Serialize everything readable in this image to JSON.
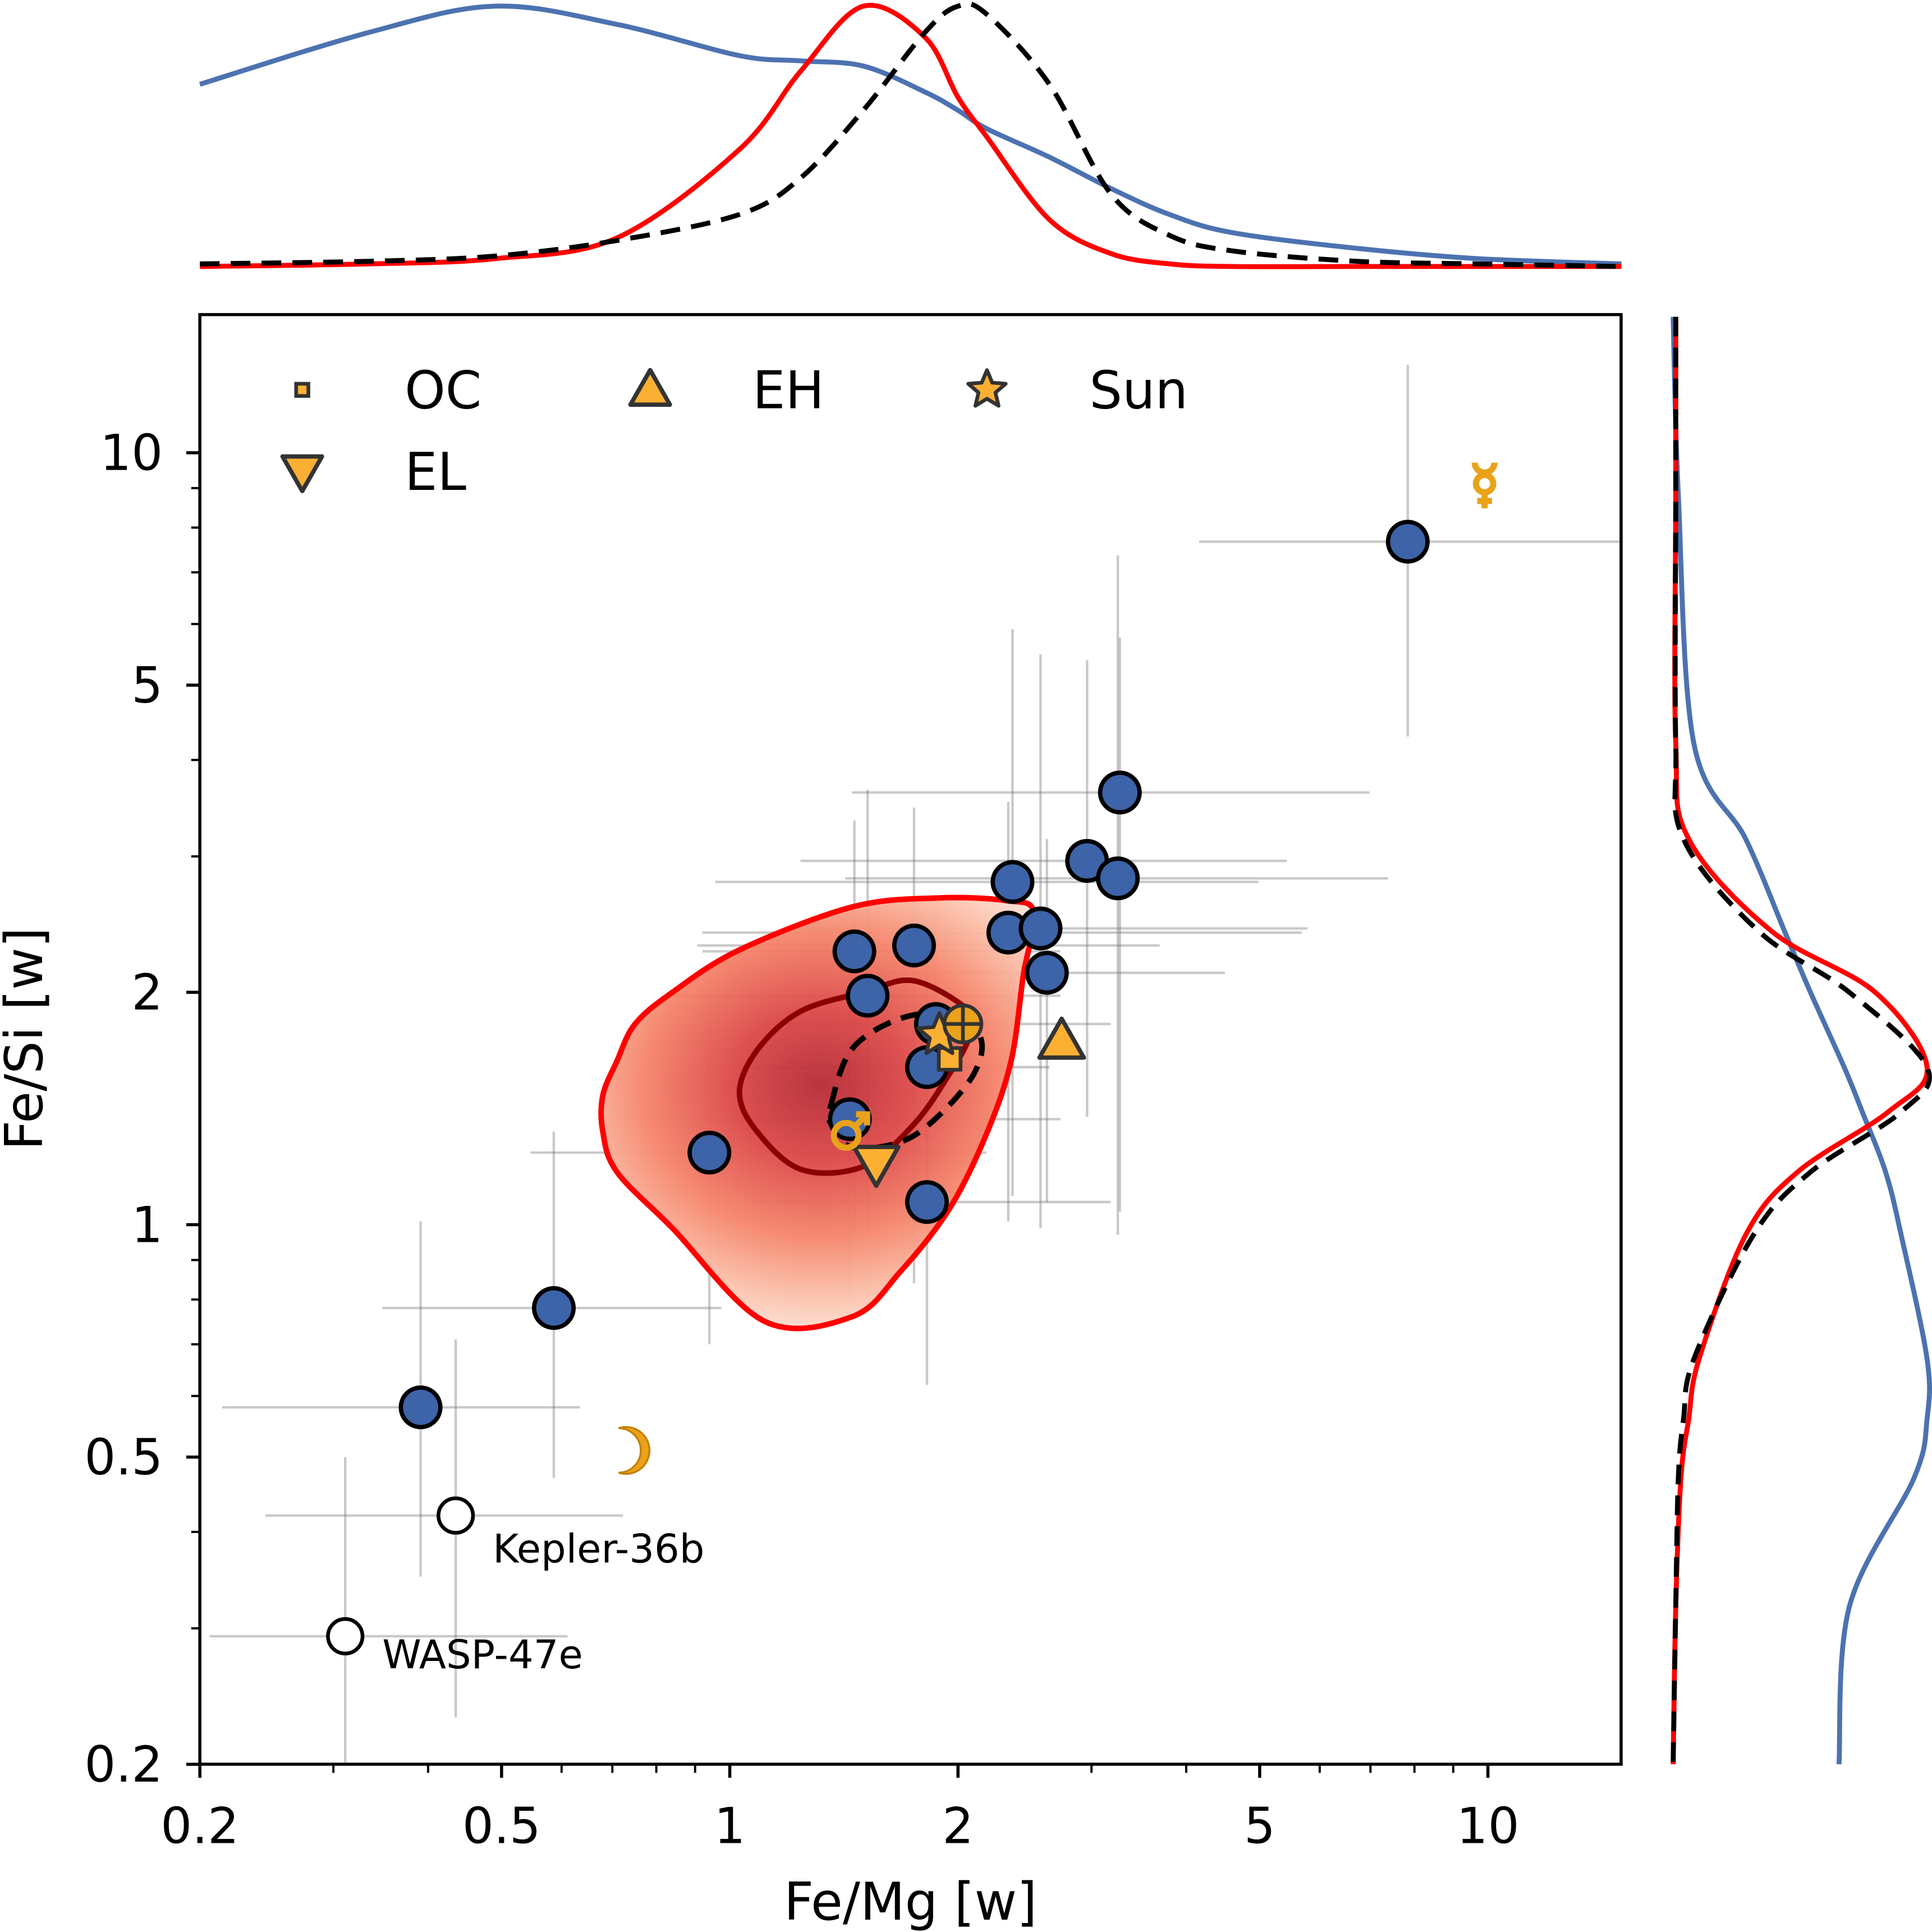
{
  "chart_data": {
    "type": "scatter",
    "xlabel": "Fe/Mg [w]",
    "ylabel": "Fe/Si [w]",
    "xscale": "log",
    "yscale": "log",
    "xlim": [
      0.2,
      15
    ],
    "ylim": [
      0.2,
      15
    ],
    "xticks": [
      0.2,
      0.5,
      1,
      2,
      5,
      10
    ],
    "xtick_labels": [
      "0.2",
      "0.5",
      "1",
      "2",
      "5",
      "10"
    ],
    "yticks": [
      0.2,
      0.5,
      1,
      2,
      5,
      10
    ],
    "ytick_labels": [
      "0.2",
      "0.5",
      "1",
      "2",
      "5",
      "10"
    ],
    "grid": false,
    "colors": {
      "planets": "#3d63a8",
      "meteorites": "#fbb034",
      "solar_bodies": "#f0a020",
      "outer_contour": "#ff0000",
      "inner_contour": "#8b0000",
      "dashed": "#000000",
      "errorbar": "#9a9a9a"
    },
    "points": [
      {
        "x": 7.84,
        "y": 7.67,
        "xerr": [
          4.16,
          15
        ],
        "yerr": [
          4.29,
          13.0
        ]
      },
      {
        "x": 3.27,
        "y": 3.63,
        "xerr": [
          1.45,
          6.98
        ],
        "yerr": [
          1.04,
          5.76
        ]
      },
      {
        "x": 2.96,
        "y": 2.96,
        "xerr": [
          1.24,
          5.43
        ],
        "yerr": [
          1.38,
          5.39
        ]
      },
      {
        "x": 3.25,
        "y": 2.81,
        "xerr": [
          1.42,
          7.38
        ],
        "yerr": [
          0.97,
          7.36
        ]
      },
      {
        "x": 2.36,
        "y": 2.78,
        "xerr": [
          0.957,
          4.98
        ],
        "yerr": [
          1.09,
          5.91
        ]
      },
      {
        "x": 2.33,
        "y": 2.39,
        "xerr": [
          0.92,
          5.68
        ],
        "yerr": [
          1.01,
          3.53
        ]
      },
      {
        "x": 2.57,
        "y": 2.42,
        "xerr": [
          1.24,
          5.78
        ],
        "yerr": [
          0.99,
          5.48
        ]
      },
      {
        "x": 2.62,
        "y": 2.12,
        "xerr": [
          1.5,
          4.5
        ],
        "yerr": [
          1.07,
          3.16
        ]
      },
      {
        "x": 1.75,
        "y": 2.3,
        "xerr": [
          0.906,
          3.69
        ],
        "yerr": [
          0.84,
          3.47
        ]
      },
      {
        "x": 1.46,
        "y": 2.26,
        "xerr": [
          0.92,
          2.73
        ],
        "yerr": [
          0.97,
          3.34
        ]
      },
      {
        "x": 1.52,
        "y": 1.98,
        "xerr": [
          0.84,
          2.73
        ],
        "yerr": [
          0.97,
          3.66
        ]
      },
      {
        "x": 1.87,
        "y": 1.82,
        "xerr": [
          1.11,
          3.18
        ],
        "yerr": [
          1.31,
          2.54
        ]
      },
      {
        "x": 1.82,
        "y": 1.6,
        "xerr": [
          1.03,
          2.64
        ],
        "yerr": [
          1.05,
          2.36
        ]
      },
      {
        "x": 1.44,
        "y": 1.37,
        "xerr": [
          0.723,
          2.73
        ],
        "yerr": [
          0.81,
          2.19
        ]
      },
      {
        "x": 0.94,
        "y": 1.24,
        "xerr": [
          0.546,
          2.18
        ],
        "yerr": [
          0.7,
          1.89
        ]
      },
      {
        "x": 1.82,
        "y": 1.07,
        "xerr": [
          1.07,
          3.18
        ],
        "yerr": [
          0.62,
          1.41
        ]
      },
      {
        "x": 0.586,
        "y": 0.78,
        "xerr": [
          0.348,
          0.975
        ],
        "yerr": [
          0.47,
          1.32
        ]
      },
      {
        "x": 0.391,
        "y": 0.58,
        "xerr": [
          0.214,
          0.634
        ],
        "yerr": [
          0.35,
          1.01
        ]
      }
    ],
    "labeled_points": [
      {
        "label": "Kepler-36b",
        "x": 0.435,
        "y": 0.42,
        "xerr": [
          0.244,
          0.723
        ],
        "yerr": [
          0.23,
          0.71
        ]
      },
      {
        "label": "WASP-47e",
        "x": 0.311,
        "y": 0.293,
        "xerr": [
          0.206,
          0.611
        ],
        "yerr": [
          0.2,
          0.5
        ]
      }
    ],
    "reference_markers": [
      {
        "label": "OC",
        "marker": "square",
        "x": 1.95,
        "y": 1.64
      },
      {
        "label": "EL",
        "marker": "triangle-down",
        "x": 1.56,
        "y": 1.2
      },
      {
        "label": "EH",
        "marker": "triangle-up",
        "x": 2.74,
        "y": 1.73
      },
      {
        "label": "Sun",
        "marker": "star",
        "x": 1.89,
        "y": 1.76
      }
    ],
    "solar_system_bodies": [
      {
        "icon": "earth-symbol-icon",
        "x": 2.03,
        "y": 1.82
      },
      {
        "icon": "mars-symbol-icon",
        "x": 1.44,
        "y": 1.32
      },
      {
        "icon": "mercury-symbol-icon",
        "x": 9.9,
        "y": 9.12
      },
      {
        "icon": "moon-symbol-icon",
        "x": 0.735,
        "y": 0.51
      }
    ],
    "legend": {
      "placement": "top-left",
      "columns": 3,
      "entries": [
        "OC",
        "EH",
        "Sun",
        "EL"
      ]
    },
    "contours": {
      "outer": [
        [
          0.71,
          1.63
        ],
        [
          0.75,
          1.82
        ],
        [
          0.84,
          2.0
        ],
        [
          1.03,
          2.27
        ],
        [
          1.45,
          2.58
        ],
        [
          1.88,
          2.65
        ],
        [
          2.31,
          2.63
        ],
        [
          2.52,
          2.54
        ],
        [
          2.44,
          2.11
        ],
        [
          2.35,
          1.63
        ],
        [
          2.18,
          1.31
        ],
        [
          1.95,
          1.05
        ],
        [
          1.68,
          0.87
        ],
        [
          1.45,
          0.76
        ],
        [
          1.11,
          0.75
        ],
        [
          0.84,
          0.99
        ],
        [
          0.71,
          1.17
        ],
        [
          0.68,
          1.32
        ],
        [
          0.68,
          1.47
        ]
      ],
      "inner": [
        [
          1.03,
          1.49
        ],
        [
          1.09,
          1.69
        ],
        [
          1.24,
          1.89
        ],
        [
          1.5,
          2.0
        ],
        [
          1.75,
          2.07
        ],
        [
          2.07,
          1.89
        ],
        [
          2.07,
          1.75
        ],
        [
          1.95,
          1.57
        ],
        [
          1.75,
          1.35
        ],
        [
          1.5,
          1.19
        ],
        [
          1.24,
          1.18
        ],
        [
          1.08,
          1.33
        ]
      ],
      "dashed": [
        [
          1.36,
          1.43
        ],
        [
          1.45,
          1.69
        ],
        [
          1.68,
          1.85
        ],
        [
          1.95,
          1.87
        ],
        [
          2.14,
          1.75
        ],
        [
          2.1,
          1.57
        ],
        [
          1.88,
          1.38
        ],
        [
          1.68,
          1.28
        ],
        [
          1.45,
          1.26
        ],
        [
          1.36,
          1.35
        ]
      ],
      "density_peak": [
        1.35,
        1.5
      ]
    },
    "marginal_x": {
      "x": [
        0.2,
        0.335,
        0.49,
        0.71,
        1.03,
        1.24,
        1.5,
        1.81,
        2.0,
        2.18,
        2.64,
        3.18,
        3.8,
        4.6,
        6.7,
        9.7,
        15
      ],
      "series": [
        {
          "style": "blue-solid",
          "color": "#4c72b0",
          "density": [
            0.7,
            0.9,
            1.0,
            0.93,
            0.81,
            0.79,
            0.77,
            0.67,
            0.6,
            0.53,
            0.42,
            0.3,
            0.2,
            0.13,
            0.07,
            0.03,
            0.01
          ]
        },
        {
          "style": "red-solid",
          "color": "#ff0000",
          "density": [
            0.0,
            0.01,
            0.03,
            0.11,
            0.45,
            0.75,
            1.0,
            0.88,
            0.65,
            0.5,
            0.18,
            0.05,
            0.01,
            0.0,
            0.0,
            0.0,
            0.0
          ]
        },
        {
          "style": "black-dashed",
          "color": "#000000",
          "density": [
            0.01,
            0.02,
            0.04,
            0.1,
            0.2,
            0.34,
            0.6,
            0.9,
            1.0,
            0.97,
            0.7,
            0.28,
            0.12,
            0.06,
            0.02,
            0.01,
            0.0
          ]
        }
      ]
    },
    "marginal_y": {
      "y": [
        15,
        8.8,
        4.2,
        3.16,
        2.4,
        2.0,
        1.6,
        1.4,
        1.17,
        0.97,
        0.67,
        0.56,
        0.47,
        0.32,
        0.2
      ],
      "series": [
        {
          "style": "blue-solid",
          "color": "#4c72b0",
          "density": [
            0.02,
            0.04,
            0.1,
            0.3,
            0.45,
            0.55,
            0.68,
            0.75,
            0.84,
            0.9,
            1.0,
            1.0,
            0.95,
            0.7,
            0.66
          ]
        },
        {
          "style": "red-solid",
          "color": "#ff0000",
          "density": [
            0.03,
            0.03,
            0.03,
            0.08,
            0.4,
            0.8,
            1.0,
            0.85,
            0.5,
            0.3,
            0.12,
            0.08,
            0.05,
            0.03,
            0.02
          ]
        },
        {
          "style": "black-dashed",
          "color": "#000000",
          "density": [
            0.03,
            0.03,
            0.03,
            0.06,
            0.35,
            0.7,
            1.0,
            0.9,
            0.55,
            0.33,
            0.1,
            0.06,
            0.04,
            0.03,
            0.02
          ]
        }
      ]
    }
  }
}
